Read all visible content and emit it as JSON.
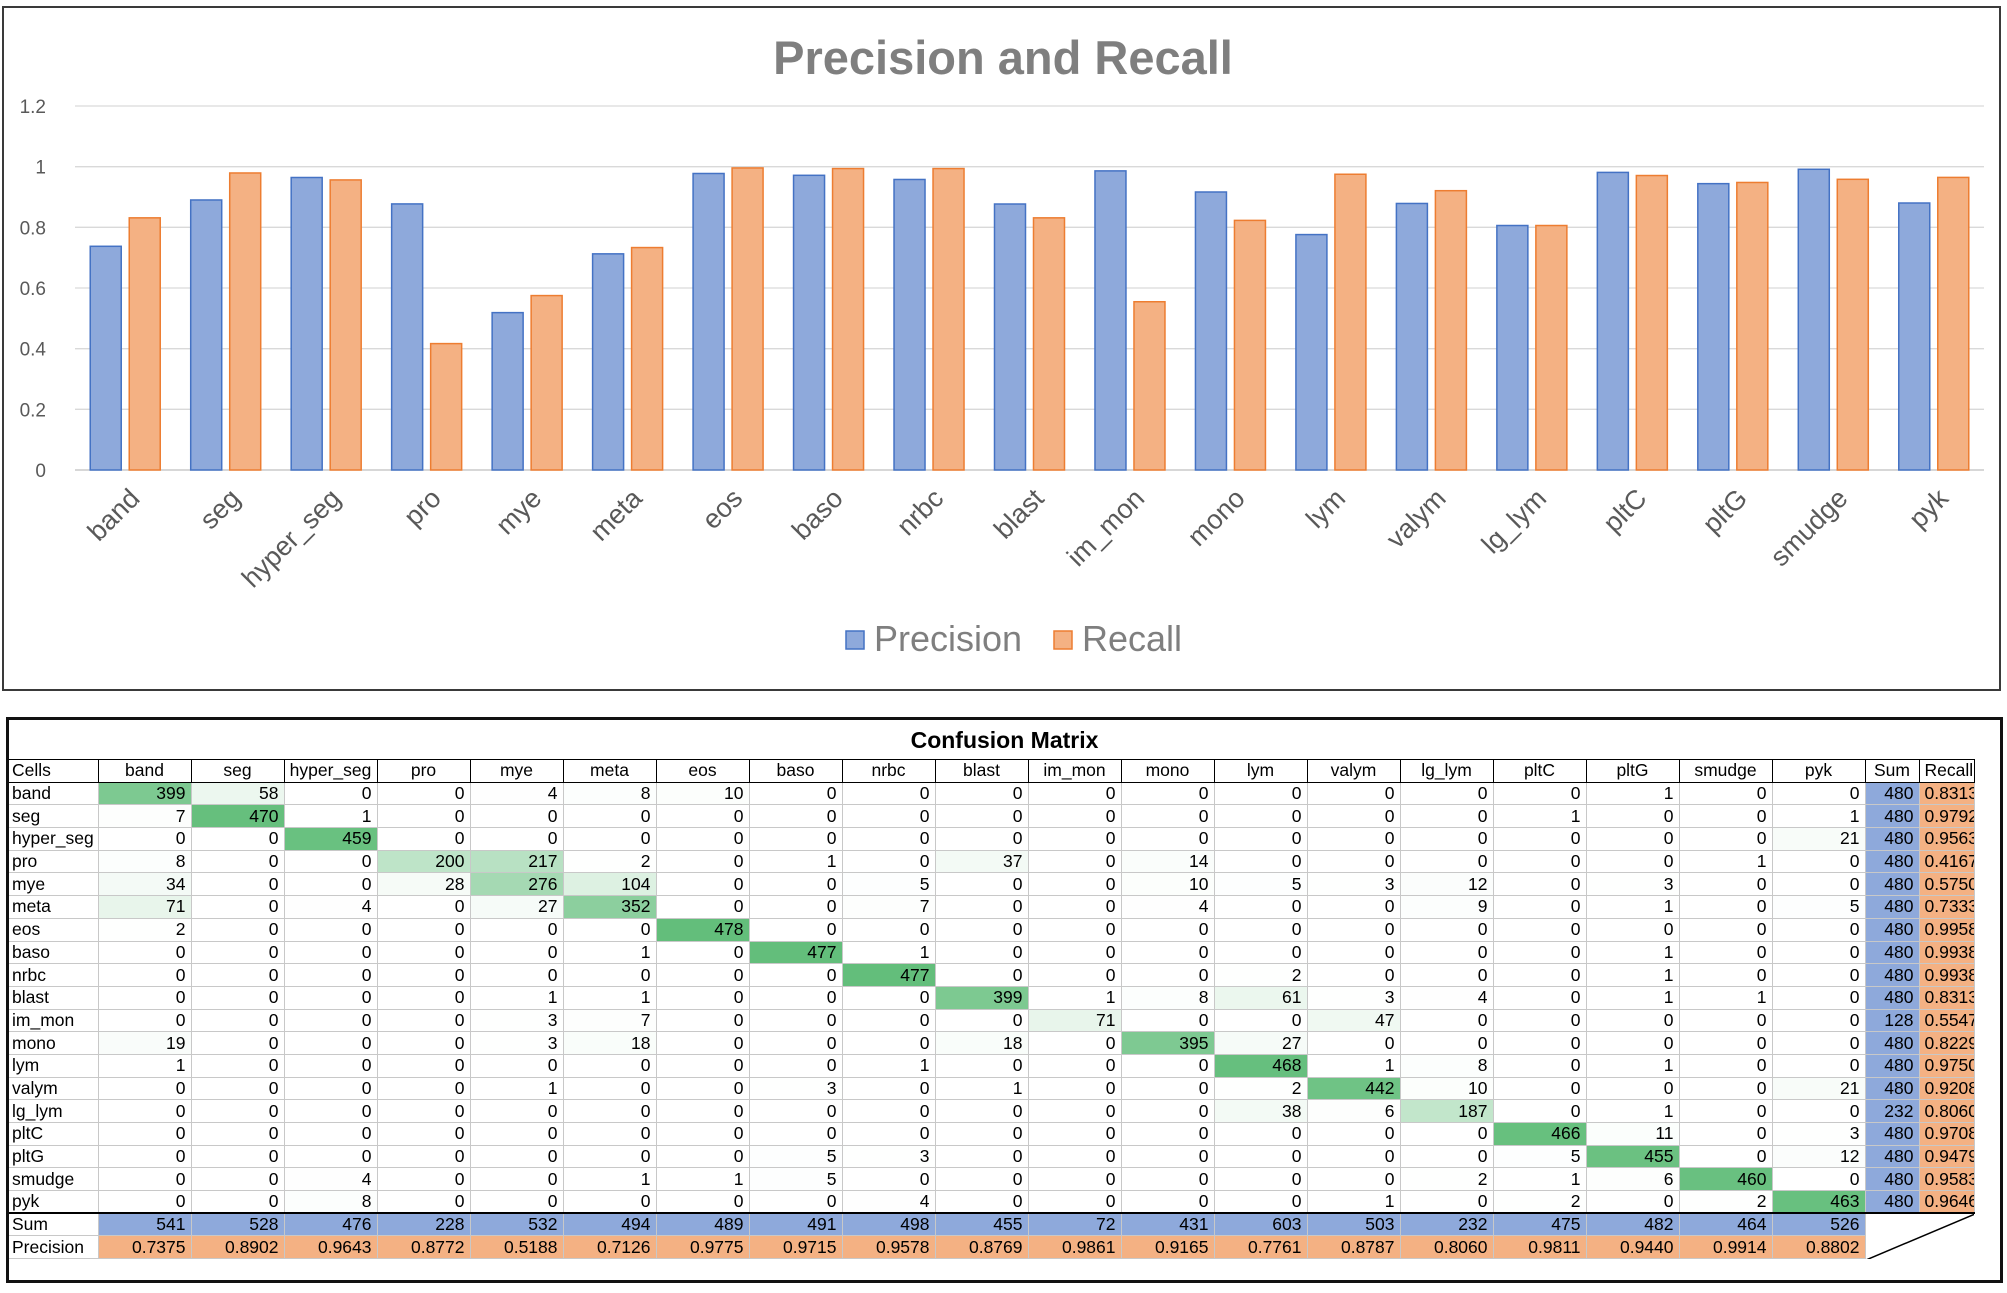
{
  "chart_data": {
    "type": "bar",
    "title": "Precision and Recall",
    "categories": [
      "band",
      "seg",
      "hyper_seg",
      "pro",
      "mye",
      "meta",
      "eos",
      "baso",
      "nrbc",
      "blast",
      "im_mon",
      "mono",
      "lym",
      "valym",
      "lg_lym",
      "pltC",
      "pltG",
      "smudge",
      "pyk"
    ],
    "series": [
      {
        "name": "Precision",
        "color": "#8ea9db",
        "values": [
          0.7375,
          0.8902,
          0.9643,
          0.8772,
          0.5188,
          0.7126,
          0.9775,
          0.9715,
          0.9578,
          0.8769,
          0.9861,
          0.9165,
          0.7761,
          0.8787,
          0.806,
          0.9811,
          0.944,
          0.9914,
          0.8802
        ]
      },
      {
        "name": "Recall",
        "color": "#f4b183",
        "values": [
          0.8313,
          0.9792,
          0.9563,
          0.4167,
          0.575,
          0.7333,
          0.9958,
          0.9938,
          0.9938,
          0.8313,
          0.5547,
          0.8229,
          0.975,
          0.9208,
          0.806,
          0.9708,
          0.9479,
          0.9583,
          0.9646
        ]
      }
    ],
    "ylim": [
      0,
      1.2
    ],
    "yticks": [
      "0",
      "0.2",
      "0.4",
      "0.6",
      "0.8",
      "1",
      "1.2"
    ],
    "ytick_values": [
      0,
      0.2,
      0.4,
      0.6,
      0.8,
      1.0,
      1.2
    ],
    "grid": true,
    "legend": "bottom-center"
  },
  "matrix": {
    "title": "Confusion Matrix",
    "corner_label": "Cells",
    "columns": [
      "band",
      "seg",
      "hyper_seg",
      "pro",
      "mye",
      "meta",
      "eos",
      "baso",
      "nrbc",
      "blast",
      "im_mon",
      "mono",
      "lym",
      "valym",
      "lg_lym",
      "pltC",
      "pltG",
      "smudge",
      "pyk"
    ],
    "sum_label": "Sum",
    "recall_label": "Recall",
    "precision_label": "Precision",
    "rows": [
      {
        "label": "band",
        "values": [
          399,
          58,
          0,
          0,
          4,
          8,
          10,
          0,
          0,
          0,
          0,
          0,
          0,
          0,
          0,
          0,
          1,
          0,
          0
        ],
        "sum": "480",
        "recall": "0.8313"
      },
      {
        "label": "seg",
        "values": [
          7,
          470,
          1,
          0,
          0,
          0,
          0,
          0,
          0,
          0,
          0,
          0,
          0,
          0,
          0,
          1,
          0,
          0,
          1
        ],
        "sum": "480",
        "recall": "0.9792"
      },
      {
        "label": "hyper_seg",
        "values": [
          0,
          0,
          459,
          0,
          0,
          0,
          0,
          0,
          0,
          0,
          0,
          0,
          0,
          0,
          0,
          0,
          0,
          0,
          21
        ],
        "sum": "480",
        "recall": "0.9563"
      },
      {
        "label": "pro",
        "values": [
          8,
          0,
          0,
          200,
          217,
          2,
          0,
          1,
          0,
          37,
          0,
          14,
          0,
          0,
          0,
          0,
          0,
          1,
          0
        ],
        "sum": "480",
        "recall": "0.4167"
      },
      {
        "label": "mye",
        "values": [
          34,
          0,
          0,
          28,
          276,
          104,
          0,
          0,
          5,
          0,
          0,
          10,
          5,
          3,
          12,
          0,
          3,
          0,
          0
        ],
        "sum": "480",
        "recall": "0.5750"
      },
      {
        "label": "meta",
        "values": [
          71,
          0,
          4,
          0,
          27,
          352,
          0,
          0,
          7,
          0,
          0,
          4,
          0,
          0,
          9,
          0,
          1,
          0,
          5
        ],
        "sum": "480",
        "recall": "0.7333"
      },
      {
        "label": "eos",
        "values": [
          2,
          0,
          0,
          0,
          0,
          0,
          478,
          0,
          0,
          0,
          0,
          0,
          0,
          0,
          0,
          0,
          0,
          0,
          0
        ],
        "sum": "480",
        "recall": "0.9958"
      },
      {
        "label": "baso",
        "values": [
          0,
          0,
          0,
          0,
          0,
          1,
          0,
          477,
          1,
          0,
          0,
          0,
          0,
          0,
          0,
          0,
          1,
          0,
          0
        ],
        "sum": "480",
        "recall": "0.9938"
      },
      {
        "label": "nrbc",
        "values": [
          0,
          0,
          0,
          0,
          0,
          0,
          0,
          0,
          477,
          0,
          0,
          0,
          2,
          0,
          0,
          0,
          1,
          0,
          0
        ],
        "sum": "480",
        "recall": "0.9938"
      },
      {
        "label": "blast",
        "values": [
          0,
          0,
          0,
          0,
          1,
          1,
          0,
          0,
          0,
          399,
          1,
          8,
          61,
          3,
          4,
          0,
          1,
          1,
          0
        ],
        "sum": "480",
        "recall": "0.8313"
      },
      {
        "label": "im_mon",
        "values": [
          0,
          0,
          0,
          0,
          3,
          7,
          0,
          0,
          0,
          0,
          71,
          0,
          0,
          47,
          0,
          0,
          0,
          0,
          0
        ],
        "sum": "128",
        "recall": "0.5547"
      },
      {
        "label": "mono",
        "values": [
          19,
          0,
          0,
          0,
          3,
          18,
          0,
          0,
          0,
          18,
          0,
          395,
          27,
          0,
          0,
          0,
          0,
          0,
          0
        ],
        "sum": "480",
        "recall": "0.8229"
      },
      {
        "label": "lym",
        "values": [
          1,
          0,
          0,
          0,
          0,
          0,
          0,
          0,
          1,
          0,
          0,
          0,
          468,
          1,
          8,
          0,
          1,
          0,
          0
        ],
        "sum": "480",
        "recall": "0.9750"
      },
      {
        "label": "valym",
        "values": [
          0,
          0,
          0,
          0,
          1,
          0,
          0,
          3,
          0,
          1,
          0,
          0,
          2,
          442,
          10,
          0,
          0,
          0,
          21
        ],
        "sum": "480",
        "recall": "0.9208"
      },
      {
        "label": "lg_lym",
        "values": [
          0,
          0,
          0,
          0,
          0,
          0,
          0,
          0,
          0,
          0,
          0,
          0,
          38,
          6,
          187,
          0,
          1,
          0,
          0
        ],
        "sum": "232",
        "recall": "0.8060"
      },
      {
        "label": "pltC",
        "values": [
          0,
          0,
          0,
          0,
          0,
          0,
          0,
          0,
          0,
          0,
          0,
          0,
          0,
          0,
          0,
          466,
          11,
          0,
          3
        ],
        "sum": "480",
        "recall": "0.9708"
      },
      {
        "label": "pltG",
        "values": [
          0,
          0,
          0,
          0,
          0,
          0,
          0,
          5,
          3,
          0,
          0,
          0,
          0,
          0,
          0,
          5,
          455,
          0,
          12
        ],
        "sum": "480",
        "recall": "0.9479"
      },
      {
        "label": "smudge",
        "values": [
          0,
          0,
          4,
          0,
          0,
          1,
          1,
          5,
          0,
          0,
          0,
          0,
          0,
          0,
          2,
          1,
          6,
          460,
          0
        ],
        "sum": "480",
        "recall": "0.9583"
      },
      {
        "label": "pyk",
        "values": [
          0,
          0,
          8,
          0,
          0,
          0,
          0,
          0,
          4,
          0,
          0,
          0,
          0,
          1,
          0,
          2,
          0,
          2,
          463
        ],
        "sum": "480",
        "recall": "0.9646"
      }
    ],
    "col_sums": [
      "541",
      "528",
      "476",
      "228",
      "532",
      "494",
      "489",
      "491",
      "498",
      "455",
      "72",
      "431",
      "603",
      "503",
      "232",
      "475",
      "482",
      "464",
      "526"
    ],
    "precision": [
      "0.7375",
      "0.8902",
      "0.9643",
      "0.8772",
      "0.5188",
      "0.7126",
      "0.9775",
      "0.9715",
      "0.9578",
      "0.8769",
      "0.9861",
      "0.9165",
      "0.7761",
      "0.8787",
      "0.8060",
      "0.9811",
      "0.9440",
      "0.9914",
      "0.8802"
    ],
    "colors": {
      "sum": "#8ea9db",
      "recall": "#f4b183",
      "heat_max": "#63be7b",
      "heat_min": "#ffffff"
    }
  }
}
